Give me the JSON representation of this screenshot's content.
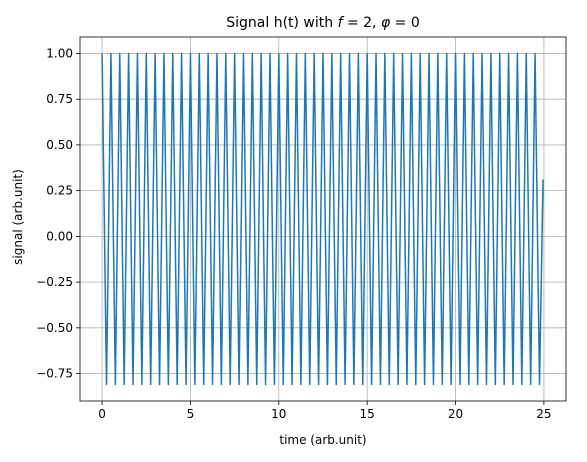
{
  "chart_data": {
    "type": "line",
    "title": "Signal h(t) with f = 2, φ = 0",
    "title_parts": {
      "prefix": "Signal h(t) with ",
      "f_symbol": "f",
      "f_value": " = 2, ",
      "phi_symbol": "φ",
      "phi_value": " = 0"
    },
    "xlabel": "time (arb.unit)",
    "ylabel": "signal (arb.unit)",
    "xlim": [
      -1.25,
      26.25
    ],
    "ylim": [
      -0.9,
      1.09
    ],
    "xticks": [
      0,
      5,
      10,
      15,
      20,
      25
    ],
    "xtick_labels": [
      "0",
      "5",
      "10",
      "15",
      "20",
      "25"
    ],
    "yticks": [
      -0.75,
      -0.5,
      -0.25,
      0.0,
      0.25,
      0.5,
      0.75,
      1.0
    ],
    "ytick_labels": [
      "−0.75",
      "−0.50",
      "−0.25",
      "0.00",
      "0.25",
      "0.50",
      "0.75",
      "1.00"
    ],
    "grid": true,
    "series": [
      {
        "color": "#1f77b4",
        "x": [
          0.0,
          0.25,
          0.5,
          0.75,
          1.0,
          1.25,
          1.5,
          1.75,
          2.0,
          2.25,
          2.5,
          2.75,
          3.0,
          3.25,
          3.5,
          3.75,
          4.0,
          4.25,
          4.5,
          4.75,
          5.0,
          5.25,
          5.5,
          5.75,
          6.0,
          6.25,
          6.5,
          6.75,
          7.0,
          7.25,
          7.5,
          7.75,
          8.0,
          8.25,
          8.5,
          8.75,
          9.0,
          9.25,
          9.5,
          9.75,
          10.0,
          10.25,
          10.5,
          10.75,
          11.0,
          11.25,
          11.5,
          11.75,
          12.0,
          12.25,
          12.5,
          12.75,
          13.0,
          13.25,
          13.5,
          13.75,
          14.0,
          14.25,
          14.5,
          14.75,
          15.0,
          15.25,
          15.5,
          15.75,
          16.0,
          16.25,
          16.5,
          16.75,
          17.0,
          17.25,
          17.5,
          17.75,
          18.0,
          18.25,
          18.5,
          18.75,
          19.0,
          19.25,
          19.5,
          19.75,
          20.0,
          20.25,
          20.5,
          20.75,
          21.0,
          21.25,
          21.5,
          21.75,
          22.0,
          22.25,
          22.5,
          22.75,
          23.0,
          23.25,
          23.5,
          23.75,
          24.0,
          24.25,
          24.5,
          24.75,
          24.95
        ],
        "y": [
          1.0,
          -0.81,
          1.0,
          -0.81,
          1.0,
          -0.81,
          1.0,
          -0.81,
          1.0,
          -0.81,
          1.0,
          -0.81,
          1.0,
          -0.81,
          1.0,
          -0.81,
          1.0,
          -0.81,
          1.0,
          -0.81,
          1.0,
          -0.81,
          1.0,
          -0.81,
          1.0,
          -0.81,
          1.0,
          -0.81,
          1.0,
          -0.81,
          1.0,
          -0.81,
          1.0,
          -0.81,
          1.0,
          -0.81,
          1.0,
          -0.81,
          1.0,
          -0.81,
          1.0,
          -0.81,
          1.0,
          -0.81,
          1.0,
          -0.81,
          1.0,
          -0.81,
          1.0,
          -0.81,
          1.0,
          -0.81,
          1.0,
          -0.81,
          1.0,
          -0.81,
          1.0,
          -0.81,
          1.0,
          -0.81,
          1.0,
          -0.81,
          1.0,
          -0.81,
          1.0,
          -0.81,
          1.0,
          -0.81,
          1.0,
          -0.81,
          1.0,
          -0.81,
          1.0,
          -0.81,
          1.0,
          -0.81,
          1.0,
          -0.81,
          1.0,
          -0.81,
          1.0,
          -0.81,
          1.0,
          -0.81,
          1.0,
          -0.81,
          1.0,
          -0.81,
          1.0,
          -0.81,
          1.0,
          -0.81,
          1.0,
          -0.81,
          1.0,
          -0.81,
          1.0,
          -0.81,
          1.0,
          -0.81,
          0.31
        ]
      }
    ]
  }
}
